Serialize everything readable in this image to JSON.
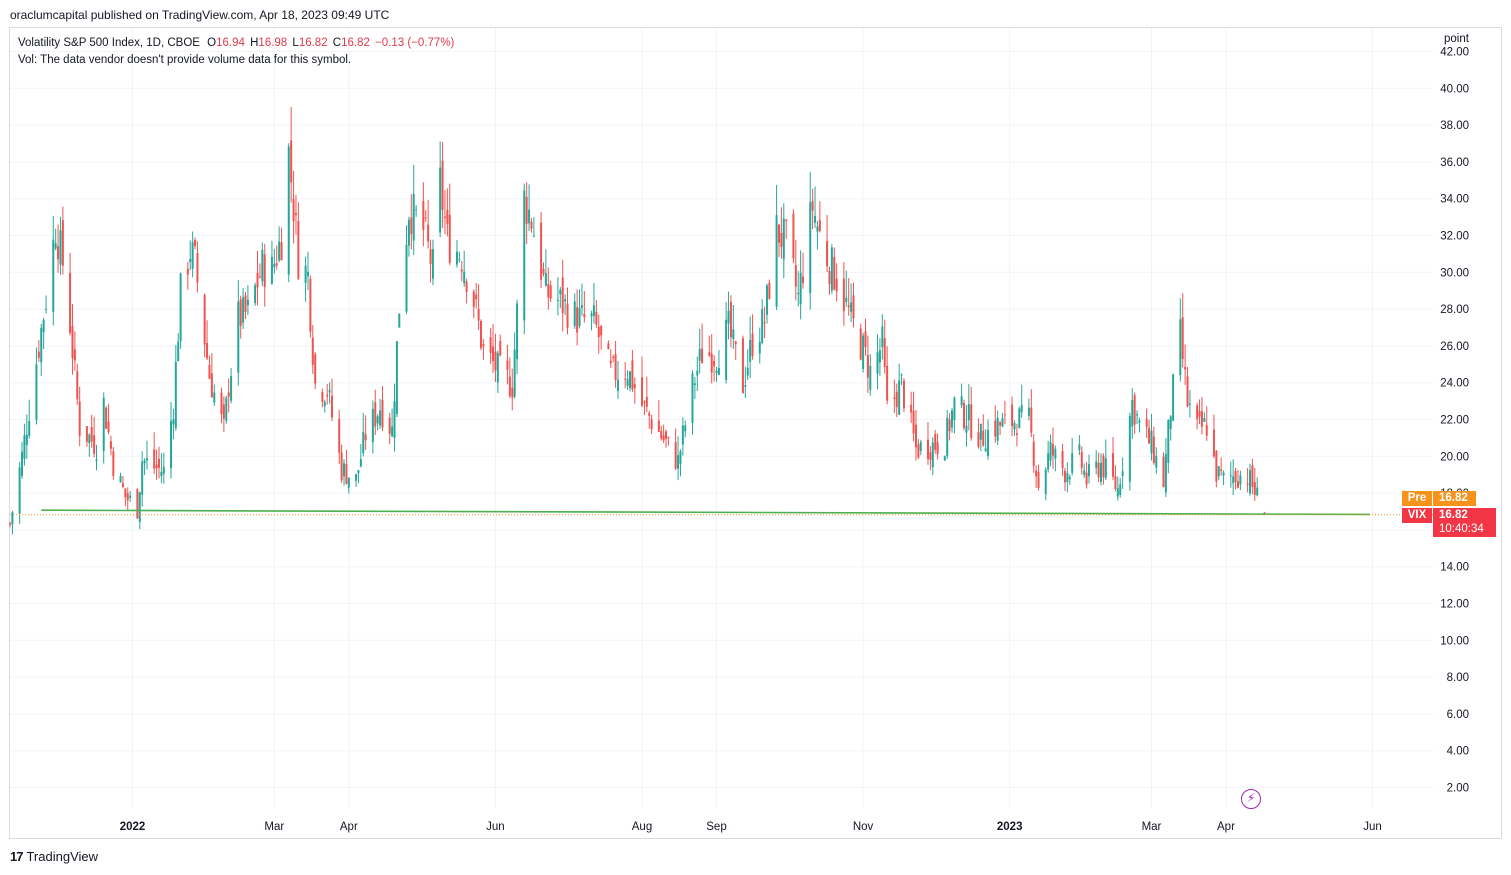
{
  "header": {
    "published_line": "oraclumcapital published on TradingView.com, Apr 18, 2023 09:49 UTC"
  },
  "legend": {
    "symbol_line": "Volatility S&P 500 Index, 1D, CBOE",
    "o_label": "O",
    "o_value": "16.94",
    "h_label": "H",
    "h_value": "16.98",
    "l_label": "L",
    "l_value": "16.82",
    "c_label": "C",
    "c_value": "16.82",
    "change": "−0.13 (−0.77%)",
    "volume_note": "Vol: The data vendor doesn't provide volume data for this symbol."
  },
  "axis": {
    "unit_label": "point"
  },
  "price_tags": {
    "pre_label": "Pre",
    "pre_value": "16.82",
    "vix_label": "VIX",
    "vix_value": "16.82",
    "vix_countdown": "10:40:34"
  },
  "footer": {
    "logo_mark": "17",
    "logo_text": "TradingView"
  },
  "colors": {
    "up": "#26a69a",
    "down": "#ef5350",
    "support_line": "#4caf50",
    "grid": "#f0f3fa",
    "pre_tag": "#f7931a",
    "vix_tag": "#f23645",
    "indicator_icon": "#9c27b0"
  },
  "icons": {
    "indicator": "lightning-circle-icon",
    "logo": "tradingview-logo-icon"
  },
  "chart_data": {
    "type": "candlestick",
    "title": "Volatility S&P 500 Index, 1D, CBOE",
    "ylabel": "point",
    "ylim": [
      0,
      42
    ],
    "yticks": [
      2,
      4,
      6,
      8,
      10,
      12,
      14,
      16,
      18,
      20,
      22,
      24,
      26,
      28,
      30,
      32,
      34,
      36,
      38,
      40,
      42
    ],
    "ytick_labels": [
      "2.00",
      "4.00",
      "6.00",
      "8.00",
      "10.00",
      "12.00",
      "14.00",
      "",
      "18.00",
      "20.00",
      "22.00",
      "24.00",
      "26.00",
      "28.00",
      "30.00",
      "32.00",
      "34.00",
      "36.00",
      "38.00",
      "40.00",
      "42.00"
    ],
    "xlim": [
      "2021-11-11",
      "2023-07-05"
    ],
    "xticks": [
      {
        "date": "2022-01-01",
        "label": "2022",
        "bold": true
      },
      {
        "date": "2022-03-01",
        "label": "Mar",
        "bold": false
      },
      {
        "date": "2022-04-01",
        "label": "Apr",
        "bold": false
      },
      {
        "date": "2022-06-01",
        "label": "Jun",
        "bold": false
      },
      {
        "date": "2022-08-01",
        "label": "Aug",
        "bold": false
      },
      {
        "date": "2022-09-01",
        "label": "Sep",
        "bold": false
      },
      {
        "date": "2022-11-01",
        "label": "Nov",
        "bold": false
      },
      {
        "date": "2023-01-01",
        "label": "2023",
        "bold": true
      },
      {
        "date": "2023-03-01",
        "label": "Mar",
        "bold": false
      },
      {
        "date": "2023-04-01",
        "label": "Apr",
        "bold": false
      },
      {
        "date": "2023-06-01",
        "label": "Jun",
        "bold": false
      }
    ],
    "close_path": [
      [
        "2021-11-11",
        16.3
      ],
      [
        "2021-11-16",
        20.0
      ],
      [
        "2021-11-26",
        28.6
      ],
      [
        "2021-11-30",
        32.5
      ],
      [
        "2021-12-03",
        30.5
      ],
      [
        "2021-12-06",
        27.2
      ],
      [
        "2021-12-10",
        21.6
      ],
      [
        "2021-12-17",
        20.6
      ],
      [
        "2021-12-20",
        22.9
      ],
      [
        "2021-12-24",
        19.6
      ],
      [
        "2021-12-29",
        17.8
      ],
      [
        "2022-01-03",
        17.2
      ],
      [
        "2022-01-05",
        19.8
      ],
      [
        "2022-01-10",
        19.4
      ],
      [
        "2022-01-14",
        19.2
      ],
      [
        "2022-01-18",
        22.8
      ],
      [
        "2022-01-21",
        28.9
      ],
      [
        "2022-01-25",
        31.2
      ],
      [
        "2022-01-27",
        30.5
      ],
      [
        "2022-02-02",
        24.4
      ],
      [
        "2022-02-08",
        21.4
      ],
      [
        "2022-02-10",
        23.9
      ],
      [
        "2022-02-14",
        27.5
      ],
      [
        "2022-02-18",
        27.8
      ],
      [
        "2022-02-24",
        30.3
      ],
      [
        "2022-02-28",
        30.1
      ],
      [
        "2022-03-04",
        31.9
      ],
      [
        "2022-03-07",
        36.5
      ],
      [
        "2022-03-11",
        30.8
      ],
      [
        "2022-03-15",
        29.8
      ],
      [
        "2022-03-18",
        23.9
      ],
      [
        "2022-03-23",
        23.6
      ],
      [
        "2022-03-29",
        19.3
      ],
      [
        "2022-04-04",
        18.7
      ],
      [
        "2022-04-08",
        21.2
      ],
      [
        "2022-04-14",
        22.7
      ],
      [
        "2022-04-19",
        21.4
      ],
      [
        "2022-04-22",
        28.2
      ],
      [
        "2022-04-26",
        33.5
      ],
      [
        "2022-05-02",
        32.3
      ],
      [
        "2022-05-06",
        30.2
      ],
      [
        "2022-05-09",
        34.8
      ],
      [
        "2022-05-12",
        31.8
      ],
      [
        "2022-05-18",
        30.9
      ],
      [
        "2022-05-23",
        28.5
      ],
      [
        "2022-05-27",
        25.7
      ],
      [
        "2022-06-02",
        24.7
      ],
      [
        "2022-06-08",
        23.9
      ],
      [
        "2022-06-10",
        27.8
      ],
      [
        "2022-06-13",
        34.0
      ],
      [
        "2022-06-16",
        32.9
      ],
      [
        "2022-06-22",
        28.9
      ],
      [
        "2022-06-28",
        28.4
      ],
      [
        "2022-07-05",
        27.5
      ],
      [
        "2022-07-12",
        27.3
      ],
      [
        "2022-07-19",
        24.5
      ],
      [
        "2022-07-26",
        24.7
      ],
      [
        "2022-08-01",
        22.8
      ],
      [
        "2022-08-08",
        21.3
      ],
      [
        "2022-08-16",
        19.7
      ],
      [
        "2022-08-22",
        23.8
      ],
      [
        "2022-08-26",
        25.6
      ],
      [
        "2022-09-01",
        25.5
      ],
      [
        "2022-09-06",
        26.9
      ],
      [
        "2022-09-12",
        23.9
      ],
      [
        "2022-09-16",
        26.3
      ],
      [
        "2022-09-21",
        27.4
      ],
      [
        "2022-09-26",
        32.3
      ],
      [
        "2022-09-30",
        31.6
      ],
      [
        "2022-10-05",
        28.6
      ],
      [
        "2022-10-11",
        33.6
      ],
      [
        "2022-10-14",
        32.0
      ],
      [
        "2022-10-18",
        30.5
      ],
      [
        "2022-10-21",
        29.7
      ],
      [
        "2022-10-27",
        27.4
      ],
      [
        "2022-11-01",
        25.8
      ],
      [
        "2022-11-04",
        24.6
      ],
      [
        "2022-11-09",
        26.1
      ],
      [
        "2022-11-11",
        22.5
      ],
      [
        "2022-11-17",
        23.9
      ],
      [
        "2022-11-23",
        20.4
      ],
      [
        "2022-11-30",
        20.6
      ],
      [
        "2022-12-05",
        20.8
      ],
      [
        "2022-12-09",
        22.8
      ],
      [
        "2022-12-14",
        22.2
      ],
      [
        "2022-12-20",
        21.0
      ],
      [
        "2022-12-27",
        21.7
      ],
      [
        "2022-12-30",
        21.7
      ],
      [
        "2023-01-04",
        22.0
      ],
      [
        "2023-01-09",
        21.9
      ],
      [
        "2023-01-13",
        18.4
      ],
      [
        "2023-01-18",
        20.3
      ],
      [
        "2023-01-24",
        19.2
      ],
      [
        "2023-01-30",
        19.9
      ],
      [
        "2023-02-02",
        18.7
      ],
      [
        "2023-02-08",
        19.6
      ],
      [
        "2023-02-15",
        18.2
      ],
      [
        "2023-02-21",
        22.9
      ],
      [
        "2023-02-24",
        21.7
      ],
      [
        "2023-03-01",
        20.6
      ],
      [
        "2023-03-06",
        18.6
      ],
      [
        "2023-03-09",
        22.6
      ],
      [
        "2023-03-13",
        26.5
      ],
      [
        "2023-03-16",
        22.9
      ],
      [
        "2023-03-20",
        21.4
      ],
      [
        "2023-03-24",
        21.7
      ],
      [
        "2023-03-28",
        19.1
      ],
      [
        "2023-03-31",
        18.7
      ],
      [
        "2023-04-05",
        19.0
      ],
      [
        "2023-04-10",
        18.9
      ],
      [
        "2023-04-13",
        18.1
      ],
      [
        "2023-04-17",
        16.8
      ]
    ],
    "last": {
      "date": "2023-04-17",
      "open": 16.94,
      "high": 16.98,
      "low": 16.82,
      "close": 16.82
    },
    "support_line": {
      "start": [
        "2021-11-24",
        17.07
      ],
      "end": [
        "2023-05-31",
        16.84
      ]
    },
    "last_price_line": 16.82
  }
}
